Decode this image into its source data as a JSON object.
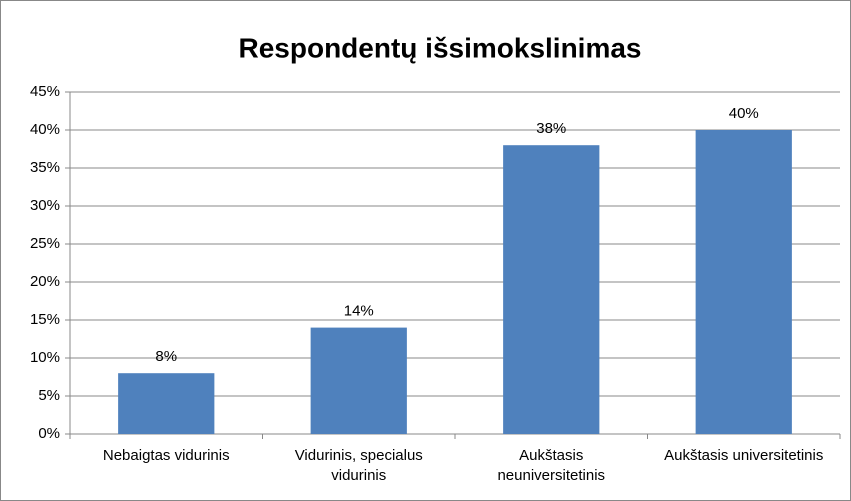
{
  "chart_data": {
    "type": "bar",
    "title": "Respondentų išsimokslinimas",
    "categories": [
      "Nebaigtas vidurinis",
      "Vidurinis, specialus vidurinis",
      "Aukštasis neuniversitetinis",
      "Aukštasis universitetinis"
    ],
    "values": [
      8,
      14,
      38,
      40
    ],
    "value_labels": [
      "8%",
      "14%",
      "38%",
      "40%"
    ],
    "color": "#4f81bd",
    "ylim": [
      0,
      45
    ],
    "yticks": [
      {
        "value": 0,
        "label": "0%"
      },
      {
        "value": 5,
        "label": "5%"
      },
      {
        "value": 10,
        "label": "10%"
      },
      {
        "value": 15,
        "label": "15%"
      },
      {
        "value": 20,
        "label": "20%"
      },
      {
        "value": 25,
        "label": "25%"
      },
      {
        "value": 30,
        "label": "30%"
      },
      {
        "value": 35,
        "label": "35%"
      },
      {
        "value": 40,
        "label": "40%"
      },
      {
        "value": 45,
        "label": "45%"
      }
    ],
    "grid": true
  }
}
